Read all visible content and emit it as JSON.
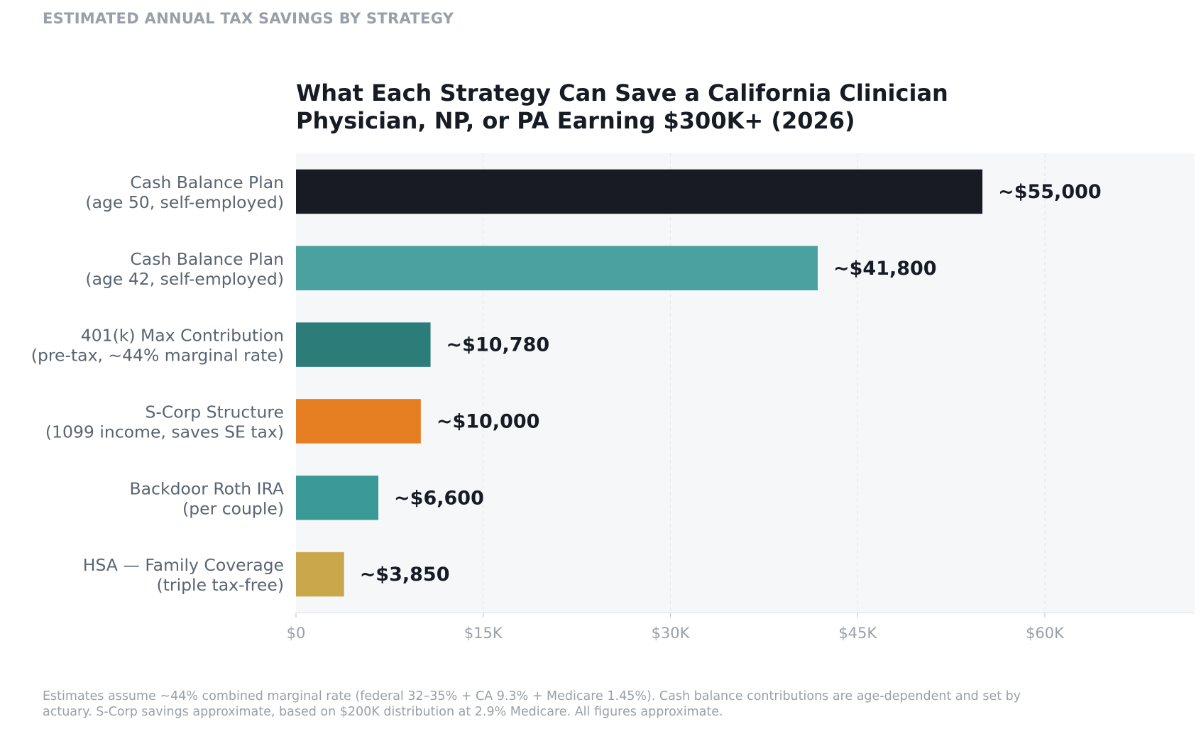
{
  "header": {
    "kicker": "ESTIMATED ANNUAL TAX SAVINGS BY STRATEGY"
  },
  "chart_data": {
    "type": "bar",
    "orientation": "horizontal",
    "title_lines": [
      "What Each Strategy Can Save a California Clinician",
      "Physician, NP, or PA Earning $300K+ (2026)"
    ],
    "categories": [
      [
        "Cash Balance Plan",
        "(age 50, self-employed)"
      ],
      [
        "Cash Balance Plan",
        "(age 42, self-employed)"
      ],
      [
        "401(k) Max Contribution",
        "(pre-tax, ~44% marginal rate)"
      ],
      [
        "S-Corp Structure",
        "(1099 income, saves SE tax)"
      ],
      [
        "Backdoor Roth IRA",
        "(per couple)"
      ],
      [
        "HSA — Family Coverage",
        "(triple tax-free)"
      ]
    ],
    "values": [
      55000,
      41800,
      10780,
      10000,
      6600,
      3850
    ],
    "data_labels": [
      "~$55,000",
      "~$41,800",
      "~$10,780",
      "~$10,000",
      "~$6,600",
      "~$3,850"
    ],
    "colors": [
      "#181b23",
      "#4aa19f",
      "#2c7c7a",
      "#e67f22",
      "#3b9997",
      "#c9a74a"
    ],
    "xlabel": "",
    "ylabel": "",
    "xlim": [
      0,
      72000
    ],
    "xticks": [
      0,
      15000,
      30000,
      45000,
      60000
    ],
    "xtick_labels": [
      "$0",
      "$15K",
      "$30K",
      "$45K",
      "$60K"
    ],
    "grid": "vertical dashed",
    "legend": "none"
  },
  "footnote": {
    "lines": [
      "Estimates assume ~44% combined marginal rate (federal 32–35% + CA 9.3% + Medicare 1.45%). Cash balance contributions are age-dependent and set by",
      "actuary. S-Corp savings approximate, based on $200K distribution at 2.9% Medicare. All figures approximate."
    ]
  }
}
